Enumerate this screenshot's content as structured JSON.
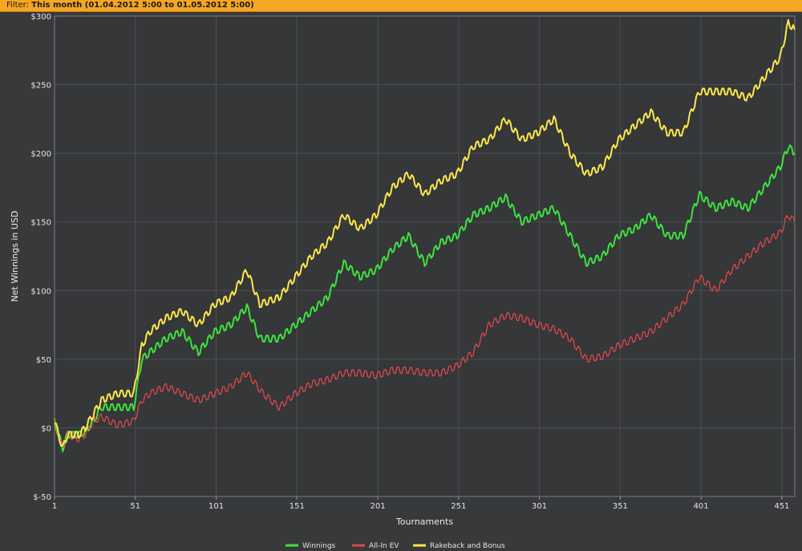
{
  "filter": {
    "label": "Filter:",
    "value": "This month (01.04.2012 5:00 to 01.05.2012 5:00)"
  },
  "chart_data": {
    "type": "line",
    "xlabel": "Tournaments",
    "ylabel": "Net Winnings in USD",
    "xlim": [
      1,
      459
    ],
    "ylim": [
      -50,
      300
    ],
    "x_ticks": [
      "1",
      "51",
      "101",
      "151",
      "201",
      "251",
      "301",
      "351",
      "401",
      "451"
    ],
    "y_ticks": [
      "$-50",
      "$0",
      "$50",
      "$100",
      "$150",
      "$200",
      "$250",
      "$300"
    ],
    "grid": true,
    "legend_position": "bottom-center",
    "series": [
      {
        "name": "Winnings",
        "color": "#3fe23f",
        "x": [
          1,
          6,
          9,
          16,
          20,
          25,
          30,
          40,
          50,
          55,
          60,
          70,
          80,
          90,
          100,
          110,
          120,
          128,
          140,
          150,
          160,
          170,
          180,
          190,
          200,
          210,
          220,
          230,
          240,
          250,
          260,
          270,
          280,
          290,
          300,
          310,
          320,
          330,
          340,
          350,
          360,
          370,
          380,
          390,
          400,
          410,
          420,
          430,
          440,
          450,
          455,
          459
        ],
        "y": [
          5,
          -15,
          -5,
          -5,
          -3,
          5,
          15,
          15,
          15,
          50,
          55,
          65,
          70,
          55,
          70,
          75,
          88,
          65,
          65,
          75,
          85,
          95,
          120,
          110,
          115,
          130,
          140,
          120,
          135,
          140,
          155,
          160,
          168,
          150,
          155,
          160,
          140,
          120,
          125,
          140,
          145,
          155,
          140,
          140,
          170,
          160,
          165,
          160,
          175,
          190,
          205,
          200
        ]
      },
      {
        "name": "All-In EV",
        "color": "#e04848",
        "x": [
          1,
          6,
          9,
          16,
          20,
          25,
          30,
          40,
          50,
          55,
          60,
          70,
          80,
          90,
          100,
          110,
          120,
          130,
          140,
          150,
          160,
          170,
          180,
          190,
          200,
          210,
          220,
          230,
          240,
          250,
          260,
          270,
          280,
          290,
          300,
          310,
          320,
          330,
          340,
          350,
          360,
          370,
          380,
          390,
          400,
          410,
          420,
          430,
          440,
          450,
          455,
          459
        ],
        "y": [
          5,
          -15,
          -5,
          -8,
          -5,
          5,
          8,
          2,
          5,
          20,
          25,
          30,
          25,
          20,
          25,
          30,
          40,
          25,
          15,
          25,
          32,
          35,
          40,
          40,
          38,
          42,
          42,
          40,
          40,
          45,
          55,
          75,
          82,
          80,
          75,
          72,
          65,
          50,
          52,
          60,
          65,
          70,
          80,
          90,
          110,
          100,
          115,
          125,
          135,
          142,
          155,
          150
        ]
      },
      {
        "name": "Rakeback and Bonus",
        "color": "#ffe84a",
        "x": [
          1,
          6,
          9,
          16,
          20,
          25,
          30,
          40,
          50,
          55,
          60,
          70,
          80,
          90,
          100,
          110,
          120,
          128,
          140,
          150,
          160,
          170,
          180,
          190,
          200,
          210,
          220,
          230,
          240,
          250,
          260,
          270,
          280,
          290,
          300,
          310,
          320,
          330,
          340,
          350,
          360,
          370,
          380,
          390,
          400,
          410,
          420,
          430,
          440,
          450,
          455,
          459
        ],
        "y": [
          5,
          -15,
          -5,
          -5,
          0,
          10,
          20,
          25,
          25,
          60,
          70,
          80,
          85,
          75,
          90,
          95,
          115,
          90,
          95,
          110,
          125,
          135,
          155,
          145,
          155,
          175,
          185,
          170,
          180,
          185,
          205,
          210,
          225,
          210,
          215,
          225,
          200,
          185,
          190,
          210,
          220,
          230,
          215,
          215,
          245,
          245,
          245,
          240,
          255,
          270,
          295,
          290
        ]
      }
    ]
  }
}
